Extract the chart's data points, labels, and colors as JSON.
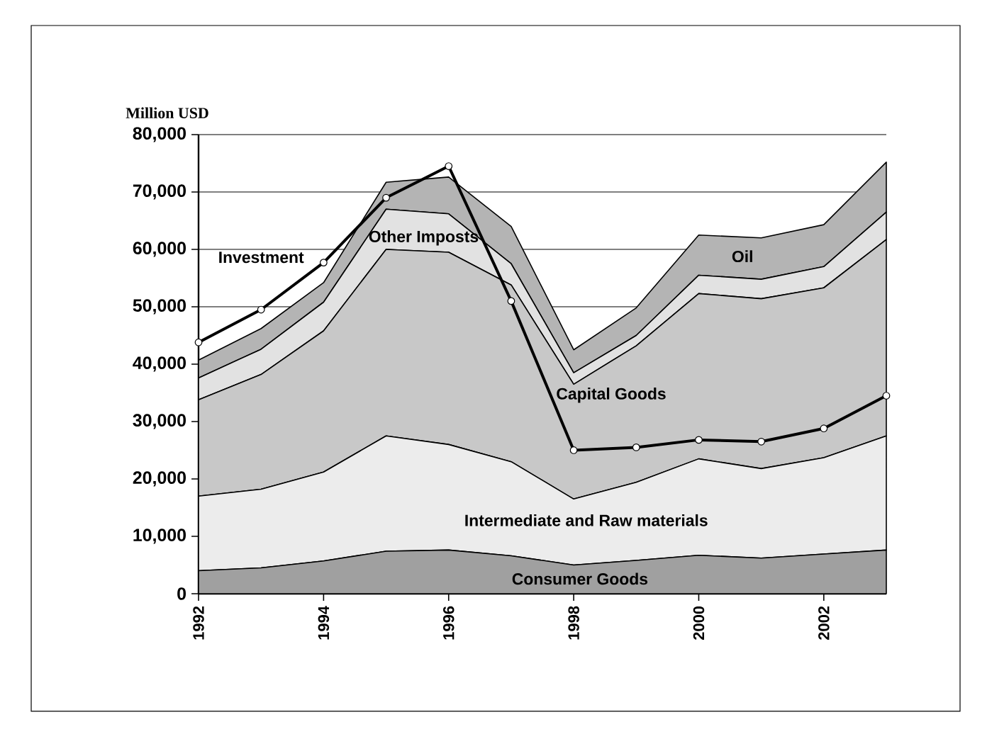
{
  "chart_data": {
    "type": "area",
    "stacked": true,
    "ylabel": "Million USD",
    "x": [
      1992,
      1993,
      1994,
      1995,
      1996,
      1997,
      1998,
      1999,
      2000,
      2001,
      2002,
      2003
    ],
    "xlim": [
      1992,
      2003
    ],
    "xticks": [
      1992,
      1994,
      1996,
      1998,
      2000,
      2002
    ],
    "ylim": [
      0,
      80000
    ],
    "yticks": [
      0,
      {
        "value": 10000,
        "label": "10,000"
      },
      {
        "value": 20000,
        "label": "20,000"
      },
      {
        "value": 30000,
        "label": "30,000"
      },
      {
        "value": 40000,
        "label": "40,000"
      },
      {
        "value": 50000,
        "label": "50,000"
      },
      {
        "value": 60000,
        "label": "60,000"
      },
      {
        "value": 70000,
        "label": "70,000"
      },
      {
        "value": 80000,
        "label": "80,000"
      }
    ],
    "grid": "y",
    "legend": false,
    "series": [
      {
        "name": "Consumer Goods",
        "color": "#a0a0a0",
        "values": [
          4000,
          4500,
          5700,
          7400,
          7600,
          6600,
          5000,
          5800,
          6700,
          6200,
          6900,
          7600
        ]
      },
      {
        "name": "Intermediate and Raw materials",
        "color": "#ececec",
        "values": [
          13000,
          13700,
          15500,
          20100,
          18400,
          16400,
          11500,
          13600,
          16800,
          15600,
          16800,
          19900
        ]
      },
      {
        "name": "Capital Goods",
        "color": "#c8c8c8",
        "values": [
          16800,
          20000,
          24600,
          32500,
          33500,
          30800,
          20000,
          23800,
          28800,
          29600,
          29600,
          34200
        ]
      },
      {
        "name": "Other Imposts",
        "color": "#e2e2e2",
        "values": [
          3800,
          4400,
          5000,
          7000,
          6700,
          3700,
          2000,
          1800,
          3200,
          3400,
          3700,
          4800
        ]
      },
      {
        "name": "Oil",
        "color": "#b4b4b4",
        "values": [
          3100,
          3600,
          3400,
          4700,
          6400,
          6500,
          4000,
          4800,
          7000,
          7200,
          7300,
          8700
        ]
      },
      {
        "name": "Investment",
        "type": "line",
        "marker": "circle",
        "color": "#000000",
        "values": [
          43800,
          49500,
          57700,
          69000,
          74500,
          51000,
          25000,
          25500,
          26800,
          26500,
          28800,
          34500
        ]
      }
    ]
  }
}
